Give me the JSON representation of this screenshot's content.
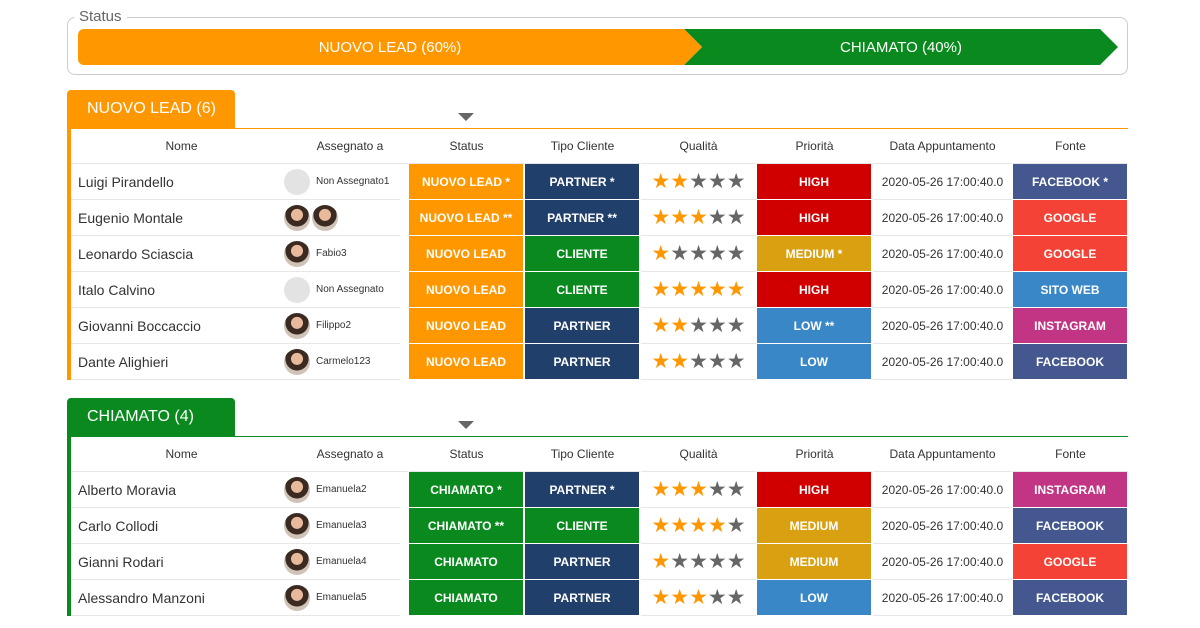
{
  "status_box": {
    "label": "Status",
    "segments": [
      {
        "label": "NUOVO LEAD (60%)",
        "share": 60,
        "color": "#ff9800"
      },
      {
        "label": "CHIAMATO (40%)",
        "share": 40,
        "color": "#0a8a1e"
      }
    ]
  },
  "groups": [
    {
      "title": "NUOVO LEAD (6)",
      "color": "#ff9800",
      "columns": [
        "Nome",
        "Assegnato a",
        "Status",
        "Tipo Cliente",
        "Qualità",
        "Priorità",
        "Data Appuntamento",
        "Fonte"
      ],
      "rows": [
        {
          "name": "Luigi Pirandello",
          "assignee": "Non Assegnato1",
          "status": {
            "text": "NUOVO LEAD *",
            "color": "#ff9800"
          },
          "client": {
            "text": "PARTNER *",
            "color": "#213f6b"
          },
          "quality": 2,
          "priority": {
            "text": "HIGH",
            "color": "#d10000"
          },
          "date": "2020-05-26 17:00:40.0",
          "source": {
            "text": "FACEBOOK *",
            "color": "#45578f"
          }
        },
        {
          "name": "Eugenio Montale",
          "assignee": null,
          "status": {
            "text": "NUOVO LEAD **",
            "color": "#ff9800"
          },
          "client": {
            "text": "PARTNER **",
            "color": "#213f6b"
          },
          "quality": 3,
          "priority": {
            "text": "HIGH",
            "color": "#d10000"
          },
          "date": "2020-05-26 17:00:40.0",
          "source": {
            "text": "GOOGLE",
            "color": "#f44336"
          }
        },
        {
          "name": "Leonardo Sciascia",
          "assignee": "Fabio3",
          "status": {
            "text": "NUOVO LEAD",
            "color": "#ff9800"
          },
          "client": {
            "text": "CLIENTE",
            "color": "#0a8a1e"
          },
          "quality": 1,
          "priority": {
            "text": "MEDIUM *",
            "color": "#d9a011"
          },
          "date": "2020-05-26 17:00:40.0",
          "source": {
            "text": "GOOGLE",
            "color": "#f44336"
          }
        },
        {
          "name": "Italo Calvino",
          "assignee": "Non Assegnato",
          "status": {
            "text": "NUOVO LEAD",
            "color": "#ff9800"
          },
          "client": {
            "text": "CLIENTE",
            "color": "#0a8a1e"
          },
          "quality": 5,
          "priority": {
            "text": "HIGH",
            "color": "#d10000"
          },
          "date": "2020-05-26 17:00:40.0",
          "source": {
            "text": "SITO WEB",
            "color": "#3a87c8"
          }
        },
        {
          "name": "Giovanni Boccaccio",
          "assignee": "Filippo2",
          "status": {
            "text": "NUOVO LEAD",
            "color": "#ff9800"
          },
          "client": {
            "text": "PARTNER",
            "color": "#213f6b"
          },
          "quality": 2,
          "priority": {
            "text": "LOW **",
            "color": "#3a87c8"
          },
          "date": "2020-05-26 17:00:40.0",
          "source": {
            "text": "INSTAGRAM",
            "color": "#c13584"
          }
        },
        {
          "name": "Dante Alighieri",
          "assignee": "Carmelo123",
          "status": {
            "text": "NUOVO LEAD",
            "color": "#ff9800"
          },
          "client": {
            "text": "PARTNER",
            "color": "#213f6b"
          },
          "quality": 2,
          "priority": {
            "text": "LOW",
            "color": "#3a87c8"
          },
          "date": "2020-05-26 17:00:40.0",
          "source": {
            "text": "FACEBOOK",
            "color": "#45578f"
          }
        }
      ]
    },
    {
      "title": "CHIAMATO (4)",
      "color": "#0a8a1e",
      "columns": [
        "Nome",
        "Assegnato a",
        "Status",
        "Tipo Cliente",
        "Qualità",
        "Priorità",
        "Data Appuntamento",
        "Fonte"
      ],
      "rows": [
        {
          "name": "Alberto Moravia",
          "assignee": "Emanuela2",
          "status": {
            "text": "CHIAMATO *",
            "color": "#0a8a1e"
          },
          "client": {
            "text": "PARTNER *",
            "color": "#213f6b"
          },
          "quality": 3,
          "priority": {
            "text": "HIGH",
            "color": "#d10000"
          },
          "date": "2020-05-26 17:00:40.0",
          "source": {
            "text": "INSTAGRAM",
            "color": "#c13584"
          }
        },
        {
          "name": "Carlo Collodi",
          "assignee": "Emanuela3",
          "status": {
            "text": "CHIAMATO **",
            "color": "#0a8a1e"
          },
          "client": {
            "text": "CLIENTE",
            "color": "#0a8a1e"
          },
          "quality": 4,
          "priority": {
            "text": "MEDIUM",
            "color": "#d9a011"
          },
          "date": "2020-05-26 17:00:40.0",
          "source": {
            "text": "FACEBOOK",
            "color": "#45578f"
          }
        },
        {
          "name": "Gianni Rodari",
          "assignee": "Emanuela4",
          "status": {
            "text": "CHIAMATO",
            "color": "#0a8a1e"
          },
          "client": {
            "text": "PARTNER",
            "color": "#213f6b"
          },
          "quality": 1,
          "priority": {
            "text": "MEDIUM",
            "color": "#d9a011"
          },
          "date": "2020-05-26 17:00:40.0",
          "source": {
            "text": "GOOGLE",
            "color": "#f44336"
          }
        },
        {
          "name": "Alessandro Manzoni",
          "assignee": "Emanuela5",
          "status": {
            "text": "CHIAMATO",
            "color": "#0a8a1e"
          },
          "client": {
            "text": "PARTNER",
            "color": "#213f6b"
          },
          "quality": 3,
          "priority": {
            "text": "LOW",
            "color": "#3a87c8"
          },
          "date": "2020-05-26 17:00:40.0",
          "source": {
            "text": "FACEBOOK",
            "color": "#45578f"
          }
        }
      ]
    }
  ]
}
